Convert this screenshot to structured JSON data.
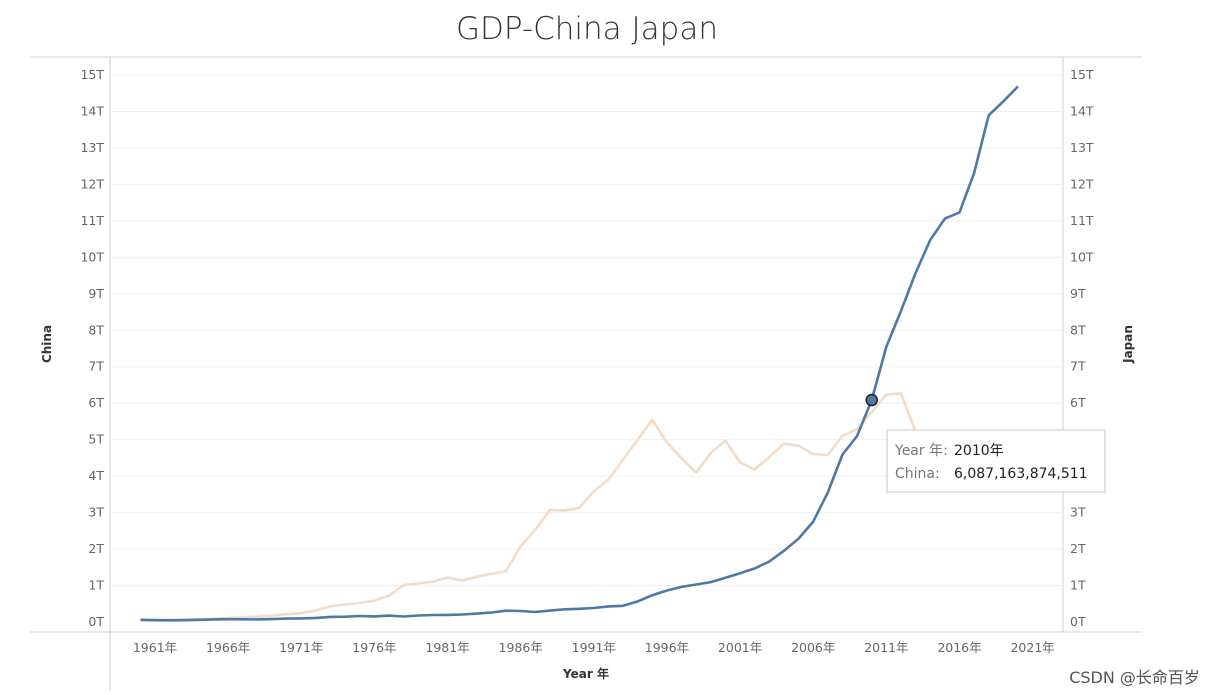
{
  "chart_data": {
    "type": "line",
    "title": "GDP-China Japan",
    "xlabel": "Year 年",
    "ylabel_left": "China",
    "ylabel_right": "Japan",
    "ylim": [
      0,
      15000000000000
    ],
    "y_ticks": [
      "0T",
      "1T",
      "2T",
      "3T",
      "4T",
      "5T",
      "6T",
      "7T",
      "8T",
      "9T",
      "10T",
      "11T",
      "12T",
      "13T",
      "14T",
      "15T"
    ],
    "x_ticks": [
      "1961年",
      "1966年",
      "1971年",
      "1976年",
      "1981年",
      "1986年",
      "1991年",
      "1996年",
      "2001年",
      "2006年",
      "2011年",
      "2016年",
      "2021年"
    ],
    "x": [
      1960,
      1961,
      1962,
      1963,
      1964,
      1965,
      1966,
      1967,
      1968,
      1969,
      1970,
      1971,
      1972,
      1973,
      1974,
      1975,
      1976,
      1977,
      1978,
      1979,
      1980,
      1981,
      1982,
      1983,
      1984,
      1985,
      1986,
      1987,
      1988,
      1989,
      1990,
      1991,
      1992,
      1993,
      1994,
      1995,
      1996,
      1997,
      1998,
      1999,
      2000,
      2001,
      2002,
      2003,
      2004,
      2005,
      2006,
      2007,
      2008,
      2009,
      2010,
      2011,
      2012,
      2013,
      2014,
      2015,
      2016,
      2017,
      2018,
      2019,
      2020
    ],
    "grid": true,
    "series": [
      {
        "name": "China",
        "color": "#4e79a7",
        "values": [
          59716467625,
          50056868958,
          47209359006,
          50706799903,
          59708343489,
          70436266147,
          76720285970,
          72881631327,
          70846535056,
          79705906247,
          92602973434,
          99800958648,
          113687586299,
          138544284708,
          144182133387,
          163431551779,
          153940455341,
          174938098826,
          149540752829,
          178282608696,
          191149211575,
          195866382432,
          205089699858,
          230686747153,
          259946510957,
          309488028132,
          300758100107,
          272972974764,
          312353631207,
          347768051311,
          360857912565,
          383373318084,
          426915712711,
          444731282435,
          564324670005,
          734547898221,
          863746717504,
          961603952954,
          1029043097558,
          1093997267271,
          1211346869605,
          1339395718865,
          1470550015082,
          1660287965663,
          1955347004963,
          2285965892361,
          2752131773355,
          3550342425238,
          4594306848763,
          5101702432883,
          6087163874511,
          7551500124197,
          8532229986993,
          9570406235659,
          10475682920598,
          11061553079872,
          11233276536744,
          12310409370894,
          13894817549380,
          14279937500606,
          14687744162801
        ]
      },
      {
        "name": "Japan",
        "color": "#f4dcc8",
        "values": [
          44307342950,
          53508617739,
          60723018683,
          69498131797,
          81749006633,
          90950278258,
          105628117601,
          123781986295,
          146601072685,
          172204199480,
          212609000000,
          240152000000,
          318031000000,
          432083000000,
          479626000000,
          521542000000,
          586162000000,
          721412000000,
          1013611000000,
          1055012000000,
          1105386000000,
          1218989000000,
          1134517000000,
          1243320000000,
          1318382000000,
          1398892000000,
          2078953000000,
          2532808000000,
          3071683000000,
          3054914000000,
          3132818000000,
          3584420000000,
          3908809000000,
          4454144000000,
          4998798000000,
          5545564000000,
          4923392000000,
          4492449000000,
          4098363000000,
          4635982000000,
          4968359000000,
          4374710000000,
          4182846000000,
          4519562000000,
          4893116000000,
          4831467000000,
          4601663000000,
          4579751000000,
          5106679000000,
          5289493000000,
          5759072000000,
          6233147000000,
          6272363000000,
          5212328000000,
          4896994000000,
          4444931000000,
          5003678000000,
          4930837000000,
          5037835000000,
          5123318000000,
          5040108000000
        ]
      }
    ],
    "tooltip": {
      "year_key": "Year 年:",
      "year_value": "2010年",
      "china_key": "China:",
      "china_value": "6,087,163,874,511",
      "year": 2010
    }
  },
  "watermark": "CSDN @长命百岁 ️"
}
